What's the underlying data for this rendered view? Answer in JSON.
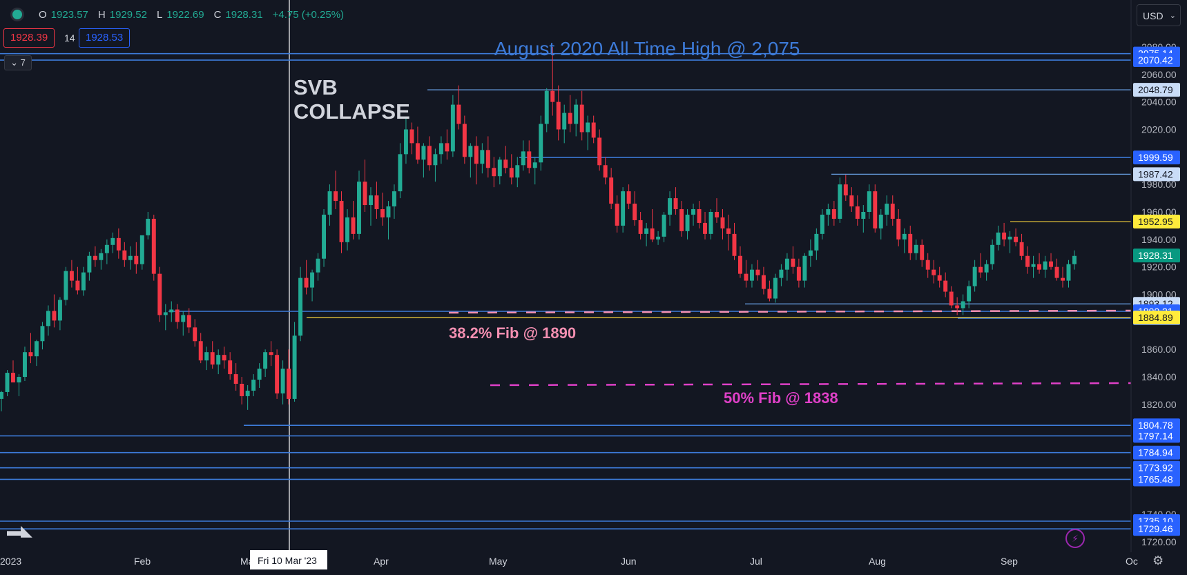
{
  "header": {
    "ohlc": [
      {
        "label": "O",
        "value": "1923.57"
      },
      {
        "label": "H",
        "value": "1929.52"
      },
      {
        "label": "L",
        "value": "1922.69"
      },
      {
        "label": "C",
        "value": "1928.31"
      },
      {
        "label": "",
        "value": "+4.75 (+0.25%)"
      }
    ],
    "sell_price": "1928.39",
    "spread": "14",
    "buy_price": "1928.53",
    "indicator_count": "7",
    "currency": "USD"
  },
  "chart_data": {
    "type": "candlestick",
    "title": "",
    "xlabel": "",
    "ylabel": "",
    "ylim": [
      1720,
      2090
    ],
    "price_axis_ticks": [
      "1720.00",
      "1740.00",
      "1820.00",
      "1840.00",
      "1860.00",
      "1900.00",
      "1920.00",
      "1940.00",
      "1960.00",
      "1980.00",
      "2000.00",
      "2020.00",
      "2040.00",
      "2060.00",
      "2080.00"
    ],
    "time_axis_labels": [
      "2023",
      "Feb",
      "Mar",
      "Apr",
      "May",
      "Jun",
      "Jul",
      "Aug",
      "Sep",
      "Oc"
    ],
    "crosshair_date_label": "Fri 10 Mar '23",
    "current_price": "1928.31",
    "horizontal_levels": [
      {
        "price": 2075.14,
        "label": "2075.14",
        "style": "solid"
      },
      {
        "price": 2070.42,
        "label": "2070.42",
        "style": "solid"
      },
      {
        "price": 2048.79,
        "label": "2048.79",
        "style": "light"
      },
      {
        "price": 1999.59,
        "label": "1999.59",
        "style": "solid"
      },
      {
        "price": 1987.42,
        "label": "1987.42",
        "style": "light"
      },
      {
        "price": 1952.95,
        "label": "1952.95",
        "style": "yellow"
      },
      {
        "price": 1893.12,
        "label": "1893.12",
        "style": "light"
      },
      {
        "price": 1890.21,
        "label": "1890.21",
        "style": "solid"
      },
      {
        "price": 1885.83,
        "label": "1885.83",
        "style": "solid"
      },
      {
        "price": 1884.89,
        "label": "1884.89",
        "style": "yellow"
      },
      {
        "price": 1804.78,
        "label": "1804.78",
        "style": "solid"
      },
      {
        "price": 1797.14,
        "label": "1797.14",
        "style": "solid"
      },
      {
        "price": 1784.94,
        "label": "1784.94",
        "style": "solid"
      },
      {
        "price": 1773.92,
        "label": "1773.92",
        "style": "solid"
      },
      {
        "price": 1765.48,
        "label": "1765.48",
        "style": "solid"
      },
      {
        "price": 1735.1,
        "label": "1735.10",
        "style": "solid"
      },
      {
        "price": 1729.46,
        "label": "1729.46",
        "style": "solid"
      }
    ],
    "fib_levels": [
      {
        "price": 1890,
        "label": "38.2% Fib @ 1890",
        "color": "#f48fb1"
      },
      {
        "price": 1838,
        "label": "50% Fib @ 1838",
        "color": "#e040c8"
      }
    ],
    "annotations": [
      {
        "text": "August 2020 All Time High @ 2,075",
        "color": "#3d7bd9"
      },
      {
        "text": "SVB",
        "color": "#d1d4dc"
      },
      {
        "text": "COLLAPSE",
        "color": "#d1d4dc"
      }
    ],
    "colors": {
      "up": "#22ab94",
      "down": "#f23645",
      "level": "#3d7bd9",
      "level_light": "#5b9be6"
    },
    "candles": [
      [
        1824,
        1830,
        1815,
        1829
      ],
      [
        1829,
        1845,
        1826,
        1843
      ],
      [
        1843,
        1852,
        1838,
        1836
      ],
      [
        1836,
        1842,
        1826,
        1840
      ],
      [
        1840,
        1862,
        1837,
        1858
      ],
      [
        1858,
        1872,
        1850,
        1855
      ],
      [
        1855,
        1867,
        1848,
        1866
      ],
      [
        1866,
        1880,
        1860,
        1877
      ],
      [
        1877,
        1892,
        1870,
        1888
      ],
      [
        1888,
        1900,
        1876,
        1881
      ],
      [
        1881,
        1898,
        1874,
        1896
      ],
      [
        1896,
        1920,
        1892,
        1917
      ],
      [
        1917,
        1925,
        1905,
        1910
      ],
      [
        1910,
        1920,
        1900,
        1903
      ],
      [
        1903,
        1920,
        1899,
        1916
      ],
      [
        1916,
        1931,
        1910,
        1928
      ],
      [
        1928,
        1935,
        1920,
        1925
      ],
      [
        1925,
        1933,
        1918,
        1930
      ],
      [
        1930,
        1940,
        1922,
        1936
      ],
      [
        1936,
        1945,
        1930,
        1941
      ],
      [
        1941,
        1948,
        1926,
        1932
      ],
      [
        1932,
        1938,
        1920,
        1925
      ],
      [
        1925,
        1935,
        1918,
        1928
      ],
      [
        1928,
        1938,
        1915,
        1922
      ],
      [
        1922,
        1940,
        1918,
        1943
      ],
      [
        1943,
        1960,
        1940,
        1955
      ],
      [
        1955,
        1958,
        1910,
        1915
      ],
      [
        1915,
        1920,
        1880,
        1885
      ],
      [
        1885,
        1893,
        1874,
        1887
      ],
      [
        1887,
        1895,
        1880,
        1889
      ],
      [
        1889,
        1893,
        1875,
        1880
      ],
      [
        1880,
        1888,
        1870,
        1885
      ],
      [
        1885,
        1890,
        1872,
        1876
      ],
      [
        1876,
        1882,
        1862,
        1866
      ],
      [
        1866,
        1872,
        1850,
        1852
      ],
      [
        1852,
        1862,
        1845,
        1858
      ],
      [
        1858,
        1866,
        1846,
        1849
      ],
      [
        1849,
        1860,
        1842,
        1856
      ],
      [
        1856,
        1862,
        1846,
        1852
      ],
      [
        1852,
        1858,
        1838,
        1842
      ],
      [
        1842,
        1850,
        1830,
        1835
      ],
      [
        1835,
        1840,
        1820,
        1826
      ],
      [
        1826,
        1834,
        1816,
        1830
      ],
      [
        1830,
        1842,
        1826,
        1838
      ],
      [
        1838,
        1850,
        1832,
        1846
      ],
      [
        1846,
        1860,
        1840,
        1858
      ],
      [
        1858,
        1866,
        1848,
        1856
      ],
      [
        1856,
        1860,
        1824,
        1828
      ],
      [
        1828,
        1852,
        1820,
        1846
      ],
      [
        1846,
        1860,
        1820,
        1824
      ],
      [
        1824,
        1880,
        1822,
        1870
      ],
      [
        1870,
        1920,
        1866,
        1912
      ],
      [
        1912,
        1925,
        1900,
        1905
      ],
      [
        1905,
        1918,
        1895,
        1916
      ],
      [
        1916,
        1930,
        1910,
        1926
      ],
      [
        1926,
        1962,
        1920,
        1958
      ],
      [
        1958,
        1980,
        1950,
        1975
      ],
      [
        1975,
        1990,
        1962,
        1968
      ],
      [
        1968,
        1975,
        1930,
        1938
      ],
      [
        1938,
        1962,
        1932,
        1956
      ],
      [
        1956,
        1968,
        1940,
        1944
      ],
      [
        1944,
        1990,
        1940,
        1982
      ],
      [
        1982,
        1998,
        1960,
        1965
      ],
      [
        1965,
        1978,
        1950,
        1972
      ],
      [
        1972,
        1982,
        1955,
        1962
      ],
      [
        1962,
        1974,
        1950,
        1956
      ],
      [
        1956,
        1968,
        1940,
        1964
      ],
      [
        1964,
        1980,
        1955,
        1975
      ],
      [
        1975,
        2010,
        1970,
        2002
      ],
      [
        2002,
        2028,
        1995,
        2020
      ],
      [
        2020,
        2025,
        2002,
        2010
      ],
      [
        2010,
        2022,
        1995,
        1998
      ],
      [
        1998,
        2010,
        1985,
        2008
      ],
      [
        2008,
        2015,
        1990,
        1994
      ],
      [
        1994,
        2006,
        1982,
        2002
      ],
      [
        2002,
        2015,
        1995,
        2010
      ],
      [
        2010,
        2020,
        1998,
        2004
      ],
      [
        2004,
        2045,
        2000,
        2038
      ],
      [
        2038,
        2052,
        2020,
        2024
      ],
      [
        2024,
        2030,
        1995,
        2000
      ],
      [
        2000,
        2010,
        1985,
        2008
      ],
      [
        2008,
        2015,
        1980,
        1995
      ],
      [
        1995,
        2010,
        1988,
        2005
      ],
      [
        2005,
        2015,
        1985,
        1992
      ],
      [
        1992,
        2000,
        1978,
        1986
      ],
      [
        1986,
        2000,
        1980,
        1998
      ],
      [
        1998,
        2008,
        1988,
        1992
      ],
      [
        1992,
        2002,
        1980,
        1985
      ],
      [
        1985,
        2000,
        1978,
        1994
      ],
      [
        1994,
        2012,
        1990,
        2004
      ],
      [
        2004,
        2012,
        1988,
        1992
      ],
      [
        1992,
        2000,
        1980,
        1996
      ],
      [
        1996,
        2030,
        1990,
        2024
      ],
      [
        2024,
        2050,
        2018,
        2048
      ],
      [
        2048,
        2080,
        2030,
        2040
      ],
      [
        2040,
        2052,
        2012,
        2020
      ],
      [
        2020,
        2038,
        2010,
        2032
      ],
      [
        2032,
        2045,
        2018,
        2024
      ],
      [
        2024,
        2042,
        2015,
        2038
      ],
      [
        2038,
        2048,
        2012,
        2018
      ],
      [
        2018,
        2030,
        2005,
        2025
      ],
      [
        2025,
        2030,
        2010,
        2014
      ],
      [
        2014,
        2020,
        1990,
        1994
      ],
      [
        1994,
        2000,
        1980,
        1985
      ],
      [
        1985,
        1992,
        1962,
        1966
      ],
      [
        1966,
        1972,
        1945,
        1950
      ],
      [
        1950,
        1978,
        1945,
        1975
      ],
      [
        1975,
        1980,
        1962,
        1966
      ],
      [
        1966,
        1975,
        1950,
        1954
      ],
      [
        1954,
        1960,
        1940,
        1944
      ],
      [
        1944,
        1952,
        1935,
        1948
      ],
      [
        1948,
        1962,
        1938,
        1940
      ],
      [
        1940,
        1946,
        1936,
        1942
      ],
      [
        1942,
        1960,
        1938,
        1958
      ],
      [
        1958,
        1975,
        1950,
        1970
      ],
      [
        1970,
        1978,
        1958,
        1962
      ],
      [
        1962,
        1968,
        1942,
        1946
      ],
      [
        1946,
        1962,
        1940,
        1958
      ],
      [
        1958,
        1966,
        1950,
        1962
      ],
      [
        1962,
        1968,
        1948,
        1952
      ],
      [
        1952,
        1960,
        1940,
        1944
      ],
      [
        1944,
        1962,
        1940,
        1960
      ],
      [
        1960,
        1970,
        1952,
        1956
      ],
      [
        1956,
        1962,
        1940,
        1948
      ],
      [
        1948,
        1958,
        1932,
        1944
      ],
      [
        1944,
        1952,
        1925,
        1928
      ],
      [
        1928,
        1935,
        1912,
        1915
      ],
      [
        1915,
        1925,
        1905,
        1910
      ],
      [
        1910,
        1922,
        1905,
        1918
      ],
      [
        1918,
        1925,
        1910,
        1914
      ],
      [
        1914,
        1920,
        1900,
        1904
      ],
      [
        1904,
        1910,
        1895,
        1897
      ],
      [
        1897,
        1915,
        1894,
        1912
      ],
      [
        1912,
        1922,
        1906,
        1918
      ],
      [
        1918,
        1930,
        1910,
        1926
      ],
      [
        1926,
        1935,
        1915,
        1920
      ],
      [
        1920,
        1926,
        1905,
        1910
      ],
      [
        1910,
        1930,
        1905,
        1928
      ],
      [
        1928,
        1940,
        1920,
        1932
      ],
      [
        1932,
        1948,
        1925,
        1944
      ],
      [
        1944,
        1962,
        1940,
        1958
      ],
      [
        1958,
        1966,
        1950,
        1962
      ],
      [
        1962,
        1968,
        1950,
        1955
      ],
      [
        1955,
        1985,
        1952,
        1980
      ],
      [
        1980,
        1987,
        1968,
        1972
      ],
      [
        1972,
        1978,
        1960,
        1964
      ],
      [
        1964,
        1972,
        1950,
        1955
      ],
      [
        1955,
        1965,
        1945,
        1960
      ],
      [
        1960,
        1980,
        1955,
        1975
      ],
      [
        1975,
        1980,
        1945,
        1948
      ],
      [
        1948,
        1962,
        1940,
        1958
      ],
      [
        1958,
        1972,
        1950,
        1966
      ],
      [
        1966,
        1972,
        1950,
        1955
      ],
      [
        1955,
        1962,
        1935,
        1940
      ],
      [
        1940,
        1948,
        1930,
        1944
      ],
      [
        1944,
        1950,
        1925,
        1930
      ],
      [
        1930,
        1940,
        1925,
        1936
      ],
      [
        1936,
        1940,
        1920,
        1925
      ],
      [
        1925,
        1930,
        1912,
        1918
      ],
      [
        1918,
        1925,
        1908,
        1914
      ],
      [
        1914,
        1920,
        1905,
        1910
      ],
      [
        1910,
        1916,
        1898,
        1902
      ],
      [
        1902,
        1906,
        1890,
        1892
      ],
      [
        1892,
        1898,
        1885,
        1890
      ],
      [
        1890,
        1900,
        1885,
        1895
      ],
      [
        1895,
        1910,
        1890,
        1906
      ],
      [
        1906,
        1925,
        1902,
        1920
      ],
      [
        1920,
        1930,
        1912,
        1916
      ],
      [
        1916,
        1925,
        1910,
        1922
      ],
      [
        1922,
        1940,
        1918,
        1936
      ],
      [
        1936,
        1950,
        1932,
        1945
      ],
      [
        1945,
        1952,
        1935,
        1940
      ],
      [
        1940,
        1946,
        1930,
        1942
      ],
      [
        1942,
        1948,
        1935,
        1938
      ],
      [
        1938,
        1944,
        1925,
        1928
      ],
      [
        1928,
        1935,
        1915,
        1920
      ],
      [
        1920,
        1928,
        1912,
        1922
      ],
      [
        1922,
        1930,
        1915,
        1918
      ],
      [
        1918,
        1928,
        1912,
        1924
      ],
      [
        1924,
        1930,
        1918,
        1920
      ],
      [
        1920,
        1926,
        1910,
        1912
      ],
      [
        1912,
        1920,
        1905,
        1910
      ],
      [
        1910,
        1925,
        1905,
        1922
      ],
      [
        1922,
        1932,
        1918,
        1928
      ]
    ]
  }
}
